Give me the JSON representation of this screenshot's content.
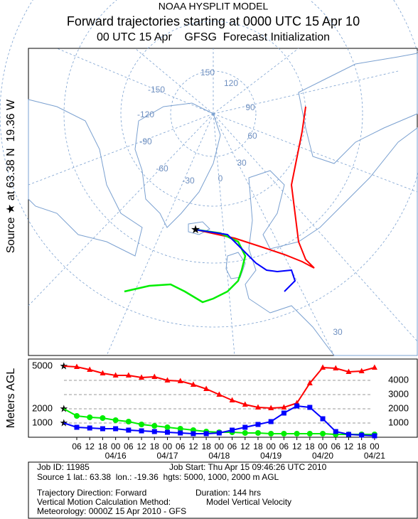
{
  "header": {
    "line1": "NOAA HYSPLIT MODEL",
    "line2": "Forward trajectories starting at 0000 UTC 15 Apr 10",
    "line3": "00 UTC 15 Apr    GFSG  Forecast Initialization"
  },
  "map": {
    "source_label": "Source ★ at 63.38 N  19.36 W",
    "labels": [
      "150",
      "120",
      "90",
      "60",
      "30",
      "0",
      "-30",
      "-60",
      "-90",
      "-120",
      "-150",
      "30"
    ]
  },
  "chart_data": {
    "type": "line",
    "y_label": "Meters AGL",
    "x": [
      0,
      6,
      12,
      18,
      24,
      30,
      36,
      42,
      48,
      54,
      60,
      66,
      72,
      78,
      84,
      90,
      96,
      102,
      108,
      114,
      120,
      126,
      132,
      138,
      144
    ],
    "xlim": [
      -16.4,
      163.8
    ],
    "xticks": [
      {
        "value": 6,
        "label": "06"
      },
      {
        "value": 12,
        "label": "12"
      },
      {
        "value": 18,
        "label": "18"
      },
      {
        "value": 24,
        "label": "00"
      },
      {
        "value": 30,
        "label": "06"
      },
      {
        "value": 36,
        "label": "12"
      },
      {
        "value": 42,
        "label": "18"
      },
      {
        "value": 48,
        "label": "00"
      },
      {
        "value": 54,
        "label": "06"
      },
      {
        "value": 60,
        "label": "12"
      },
      {
        "value": 66,
        "label": "18"
      },
      {
        "value": 72,
        "label": "00"
      },
      {
        "value": 78,
        "label": "06"
      },
      {
        "value": 84,
        "label": "12"
      },
      {
        "value": 90,
        "label": "18"
      },
      {
        "value": 96,
        "label": "00"
      },
      {
        "value": 102,
        "label": "06"
      },
      {
        "value": 108,
        "label": "12"
      },
      {
        "value": 114,
        "label": "18"
      },
      {
        "value": 120,
        "label": "00"
      },
      {
        "value": 126,
        "label": "06"
      },
      {
        "value": 132,
        "label": "12"
      },
      {
        "value": 138,
        "label": "18"
      },
      {
        "value": 144,
        "label": "00"
      }
    ],
    "date_labels": [
      {
        "value": 24,
        "label": "04/16"
      },
      {
        "value": 48,
        "label": "04/17"
      },
      {
        "value": 72,
        "label": "04/18"
      },
      {
        "value": 96,
        "label": "04/19"
      },
      {
        "value": 120,
        "label": "04/20"
      },
      {
        "value": 144,
        "label": "04/21"
      }
    ],
    "ylim": [
      0,
      5500
    ],
    "yticks": [
      1000,
      2000,
      3000,
      4000
    ],
    "grid": true,
    "source_heights": [
      5000,
      2000,
      1000
    ],
    "series": [
      {
        "color": "#ff0000",
        "marker": "triangle",
        "values": [
          5000,
          4950,
          4750,
          4500,
          4350,
          4350,
          4200,
          4250,
          4000,
          3950,
          3700,
          3400,
          3000,
          2600,
          2300,
          2100,
          2050,
          2100,
          2400,
          3800,
          4900,
          4850,
          4600,
          4650,
          4900
        ]
      },
      {
        "color": "#00ee00",
        "marker": "circle",
        "values": [
          2000,
          1500,
          1400,
          1350,
          1200,
          1100,
          900,
          800,
          700,
          600,
          500,
          400,
          350,
          350,
          300,
          300,
          250,
          250,
          250,
          250,
          250,
          200,
          200,
          200,
          200
        ]
      },
      {
        "color": "#0000ff",
        "marker": "square",
        "values": [
          1000,
          700,
          650,
          600,
          600,
          500,
          450,
          400,
          350,
          300,
          250,
          250,
          300,
          500,
          700,
          900,
          1100,
          1700,
          2200,
          2100,
          1300,
          400,
          200,
          150,
          100
        ]
      }
    ]
  },
  "footer": {
    "job_id": "Job ID: 11985",
    "job_start": "Job Start: Thu Apr 15 09:46:26 UTC 2010",
    "source": "Source 1 lat.: 63.38  lon.: -19.36  hgts: 5000, 1000, 2000 m AGL",
    "direction": "Trajectory Direction: Forward",
    "duration": "Duration: 144 hrs",
    "method": "Vertical Motion Calculation Method:",
    "method_value": "Model Vertical Velocity",
    "meteorology": "Meteorology: 0000Z 15 Apr 2010 - GFS"
  }
}
